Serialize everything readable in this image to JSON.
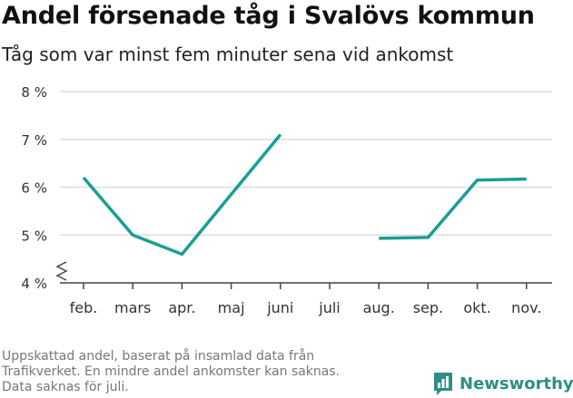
{
  "chart_data": {
    "type": "line",
    "title": "Andel försenade tåg i Svalövs kommun",
    "subtitle": "Tåg som var minst fem minuter sena vid ankomst",
    "categories": [
      "feb.",
      "mars",
      "apr.",
      "maj",
      "juni",
      "juli",
      "aug.",
      "sep.",
      "okt.",
      "nov."
    ],
    "series": [
      {
        "values": [
          6.2,
          5.0,
          4.6,
          5.85,
          7.1,
          null,
          4.93,
          4.95,
          6.15,
          6.17
        ]
      }
    ],
    "ylim": [
      4,
      8
    ],
    "yticks": [
      {
        "value": 4,
        "label": "4 %"
      },
      {
        "value": 5,
        "label": "5 %"
      },
      {
        "value": 6,
        "label": "6 %"
      },
      {
        "value": 7,
        "label": "7 %"
      },
      {
        "value": 8,
        "label": "8 %"
      }
    ],
    "grid": true,
    "axis_break": true,
    "line_color": "#1a9e94",
    "grid_color": "#dddddd",
    "footnote": [
      "Uppskattad andel, baserat på insamlad data från",
      "Trafikverket. En mindre andel ankomster kan saknas.",
      "Data saknas för juli."
    ]
  },
  "brand": {
    "name": "Newsworthy",
    "icon": "newsworthy-logo-icon",
    "color": "#2b8f85"
  }
}
